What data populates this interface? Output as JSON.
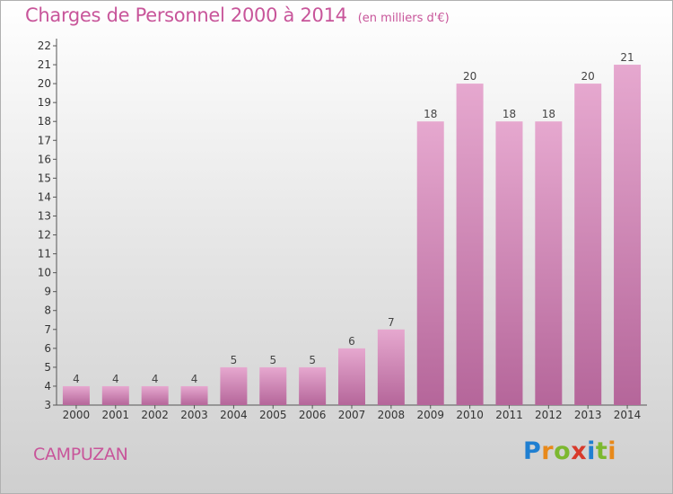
{
  "header": {
    "title": "Charges de Personnel 2000 à 2014",
    "subtitle": "(en milliers d'€)"
  },
  "footer": {
    "commune": "CAMPUZAN",
    "logo_text": "Proxiti"
  },
  "colors": {
    "accent": "#c8559a",
    "bar_top": "#e6a8cf",
    "bar_bottom": "#b5669a",
    "logo_letters": [
      "#1f7fd1",
      "#e8891a",
      "#7cb82f",
      "#d83a2b",
      "#1f7fd1",
      "#7cb82f",
      "#e8891a"
    ]
  },
  "chart_data": {
    "type": "bar",
    "title": "Charges de Personnel 2000 à 2014",
    "subtitle": "(en milliers d'€)",
    "categories": [
      "2000",
      "2001",
      "2002",
      "2003",
      "2004",
      "2005",
      "2006",
      "2007",
      "2008",
      "2009",
      "2010",
      "2011",
      "2012",
      "2013",
      "2014"
    ],
    "values": [
      4,
      4,
      4,
      4,
      5,
      5,
      5,
      6,
      7,
      18,
      20,
      18,
      18,
      20,
      21
    ],
    "ylim": [
      3,
      22
    ],
    "yticks": [
      3,
      4,
      5,
      6,
      7,
      8,
      9,
      10,
      11,
      12,
      13,
      14,
      15,
      16,
      17,
      18,
      19,
      20,
      21,
      22
    ],
    "grid": false,
    "legend": "none"
  }
}
